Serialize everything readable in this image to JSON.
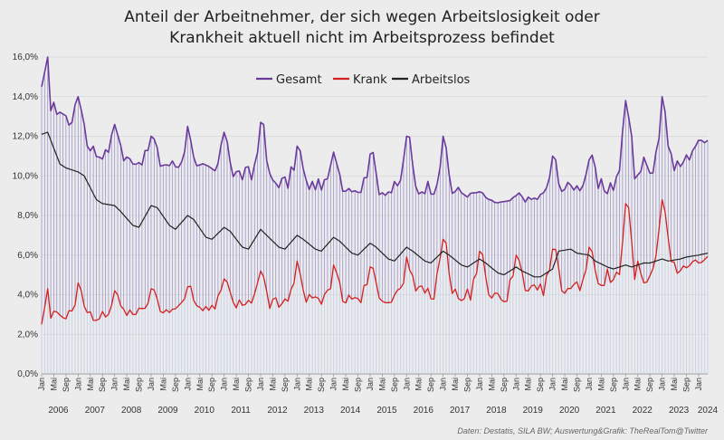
{
  "chart_data": {
    "type": "line",
    "title_line1": "Anteil der Arbeitnehmer, der sich wegen Arbeitslosigkeit oder",
    "title_line2": "Krankheit aktuell nicht im Arbeitsprozess befindet",
    "ylim": [
      0,
      16
    ],
    "yticks": [
      "0,0%",
      "2,0%",
      "4,0%",
      "6,0%",
      "8,0%",
      "10,0%",
      "12,0%",
      "14,0%",
      "16,0%"
    ],
    "start": "2006-01",
    "months": 220,
    "month_tick_labels": [
      "Jan",
      "Mai",
      "Sep"
    ],
    "year_labels": [
      "2006",
      "2007",
      "2008",
      "2009",
      "2010",
      "2011",
      "2012",
      "2013",
      "2014",
      "2015",
      "2016",
      "2017",
      "2018",
      "2019",
      "2020",
      "2021",
      "2022",
      "2023",
      "2024"
    ],
    "legend": [
      "Gesamt",
      "Krank",
      "Arbeitslos"
    ],
    "colors": {
      "Gesamt": "#6b3a9c",
      "Krank": "#d42020",
      "Arbeitslos": "#222222",
      "fill": "#c9d2ea"
    },
    "series": [
      {
        "name": "Arbeitslos",
        "anchors": [
          [
            0,
            12.1
          ],
          [
            2,
            12.2
          ],
          [
            6,
            10.6
          ],
          [
            8,
            10.4
          ],
          [
            12,
            10.2
          ],
          [
            14,
            10.0
          ],
          [
            18,
            8.8
          ],
          [
            20,
            8.6
          ],
          [
            24,
            8.5
          ],
          [
            26,
            8.2
          ],
          [
            30,
            7.5
          ],
          [
            32,
            7.4
          ],
          [
            36,
            8.5
          ],
          [
            38,
            8.4
          ],
          [
            42,
            7.5
          ],
          [
            44,
            7.3
          ],
          [
            48,
            8.0
          ],
          [
            50,
            7.8
          ],
          [
            54,
            6.9
          ],
          [
            56,
            6.8
          ],
          [
            60,
            7.4
          ],
          [
            62,
            7.2
          ],
          [
            66,
            6.4
          ],
          [
            68,
            6.3
          ],
          [
            72,
            7.3
          ],
          [
            74,
            7.0
          ],
          [
            78,
            6.4
          ],
          [
            80,
            6.3
          ],
          [
            84,
            7.0
          ],
          [
            86,
            6.8
          ],
          [
            90,
            6.3
          ],
          [
            92,
            6.2
          ],
          [
            96,
            6.9
          ],
          [
            98,
            6.7
          ],
          [
            102,
            6.1
          ],
          [
            104,
            6.0
          ],
          [
            108,
            6.6
          ],
          [
            110,
            6.4
          ],
          [
            114,
            5.8
          ],
          [
            116,
            5.7
          ],
          [
            120,
            6.4
          ],
          [
            122,
            6.2
          ],
          [
            126,
            5.7
          ],
          [
            128,
            5.6
          ],
          [
            132,
            6.2
          ],
          [
            134,
            6.0
          ],
          [
            138,
            5.5
          ],
          [
            140,
            5.4
          ],
          [
            144,
            5.8
          ],
          [
            146,
            5.6
          ],
          [
            150,
            5.1
          ],
          [
            152,
            5.0
          ],
          [
            156,
            5.4
          ],
          [
            158,
            5.2
          ],
          [
            162,
            4.9
          ],
          [
            164,
            4.9
          ],
          [
            168,
            5.3
          ],
          [
            170,
            6.2
          ],
          [
            174,
            6.3
          ],
          [
            176,
            6.1
          ],
          [
            180,
            6.0
          ],
          [
            182,
            5.7
          ],
          [
            186,
            5.4
          ],
          [
            188,
            5.3
          ],
          [
            192,
            5.5
          ],
          [
            194,
            5.4
          ],
          [
            198,
            5.6
          ],
          [
            200,
            5.6
          ],
          [
            204,
            5.8
          ],
          [
            206,
            5.7
          ],
          [
            210,
            5.8
          ],
          [
            212,
            5.9
          ],
          [
            216,
            6.0
          ],
          [
            219,
            6.1
          ]
        ]
      },
      {
        "name": "Gesamt",
        "peaks": [
          [
            0,
            14.5
          ],
          [
            2,
            16.0
          ],
          [
            12,
            14.0
          ],
          [
            24,
            12.6
          ],
          [
            36,
            12.0
          ],
          [
            48,
            12.5
          ],
          [
            60,
            12.2
          ],
          [
            72,
            12.7
          ],
          [
            84,
            11.5
          ],
          [
            96,
            11.2
          ],
          [
            108,
            11.1
          ],
          [
            120,
            12.0
          ],
          [
            132,
            12.0
          ],
          [
            144,
            9.2
          ],
          [
            156,
            9.0
          ],
          [
            168,
            11.0
          ],
          [
            180,
            10.8
          ],
          [
            192,
            13.8
          ],
          [
            204,
            14.0
          ],
          [
            216,
            11.8
          ]
        ],
        "troughs": [
          [
            6,
            13.1
          ],
          [
            18,
            10.9
          ],
          [
            30,
            10.6
          ],
          [
            42,
            10.4
          ],
          [
            54,
            10.0
          ],
          [
            66,
            9.8
          ],
          [
            78,
            9.4
          ],
          [
            90,
            9.3
          ],
          [
            102,
            9.2
          ],
          [
            114,
            9.0
          ],
          [
            126,
            9.1
          ],
          [
            138,
            9.0
          ],
          [
            150,
            8.6
          ],
          [
            162,
            8.7
          ],
          [
            174,
            9.3
          ],
          [
            186,
            9.1
          ],
          [
            198,
            10.1
          ],
          [
            210,
            10.3
          ],
          [
            219,
            11.8
          ]
        ]
      },
      {
        "name": "Krank",
        "peaks": [
          [
            0,
            2.5
          ],
          [
            2,
            4.3
          ],
          [
            12,
            4.6
          ],
          [
            24,
            4.2
          ],
          [
            36,
            4.3
          ],
          [
            48,
            4.4
          ],
          [
            60,
            4.8
          ],
          [
            72,
            5.2
          ],
          [
            84,
            5.7
          ],
          [
            96,
            5.5
          ],
          [
            108,
            5.4
          ],
          [
            120,
            5.9
          ],
          [
            132,
            6.8
          ],
          [
            144,
            6.2
          ],
          [
            156,
            6.0
          ],
          [
            168,
            6.3
          ],
          [
            180,
            6.4
          ],
          [
            192,
            8.6
          ],
          [
            204,
            8.8
          ],
          [
            216,
            5.6
          ]
        ],
        "troughs": [
          [
            6,
            2.8
          ],
          [
            18,
            2.7
          ],
          [
            30,
            3.0
          ],
          [
            42,
            3.1
          ],
          [
            54,
            3.2
          ],
          [
            66,
            3.3
          ],
          [
            78,
            3.3
          ],
          [
            90,
            3.5
          ],
          [
            102,
            3.6
          ],
          [
            114,
            3.6
          ],
          [
            126,
            3.8
          ],
          [
            138,
            3.7
          ],
          [
            150,
            3.6
          ],
          [
            162,
            3.9
          ],
          [
            174,
            4.1
          ],
          [
            186,
            4.5
          ],
          [
            198,
            4.6
          ],
          [
            210,
            5.0
          ],
          [
            219,
            6.0
          ]
        ]
      }
    ],
    "source": "Daten: Destatis, SILA BW; Auswertung&Grafik: TheRealTom@Twitter"
  }
}
